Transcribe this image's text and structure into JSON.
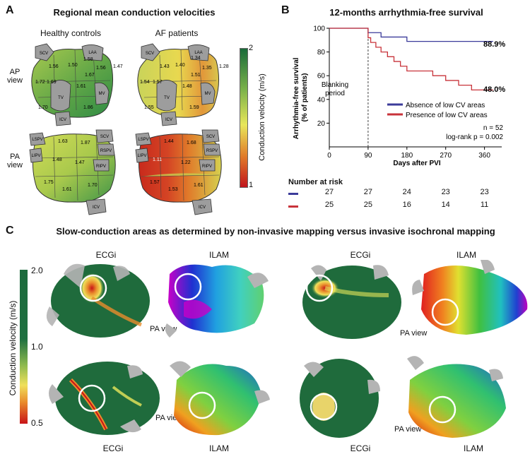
{
  "panel_a": {
    "letter": "A",
    "title": "Regional mean conduction velocities",
    "col_healthy": "Healthy controls",
    "col_af": "AF patients",
    "row_ap": "AP\nview",
    "row_pa": "PA\nview",
    "colorbar_label": "Conduction velocity (m/s)",
    "colorbar_max": "2",
    "colorbar_min": "1",
    "colorbar_colors": [
      "#1a6b3a",
      "#7db34a",
      "#e8e65a",
      "#e07a2a",
      "#c0141c"
    ],
    "ap_healthy": {
      "v1": "1.56",
      "v2": "1.50",
      "v3": "1.58",
      "v4": "1.56",
      "v5": "1.47",
      "v6": "1.72",
      "v7": "1.69",
      "v8": "1.67",
      "v9": "1.61",
      "v10": "1.70",
      "v11": "1.86"
    },
    "ap_af": {
      "v1": "1.43",
      "v2": "1.40",
      "v3": "1.34",
      "v4": "1.35",
      "v5": "1.28",
      "v6": "1.54",
      "v7": "1.57",
      "v8": "1.51",
      "v9": "1.48",
      "v10": "1.55",
      "v11": "1.59"
    },
    "pa_healthy": {
      "v1": "1.63",
      "v2": "1.87",
      "v3": "1.48",
      "v4": "1.47",
      "v5": "1.75",
      "v6": "1.61",
      "v7": "1.70"
    },
    "pa_af": {
      "v1": "1.44",
      "v2": "1.68",
      "v3": "1.11",
      "v4": "1.22",
      "v5": "1.57",
      "v6": "1.53",
      "v7": "1.61"
    },
    "struct_labels": {
      "scv": "SCV",
      "laa": "LAA",
      "tv": "TV",
      "mv": "MV",
      "icv": "ICV",
      "lspv": "LSPV",
      "lipv": "LIPV",
      "rspv": "RSPV",
      "ripv": "RIPV"
    }
  },
  "panel_b": {
    "letter": "B",
    "title": "12-months arrhythmia-free survival",
    "ylabel": "Arrhythmia-free survival\n(% of patients)",
    "xlabel": "Days after PVI",
    "blanking": "Blanking\nperiod",
    "legend_absent": "Absence of low CV areas",
    "legend_present": "Presence of low CV areas",
    "end_absent": "88.9%",
    "end_present": "48.0%",
    "n_text": "n = 52",
    "logrank": "log-rank p = 0.002",
    "risk_title": "Number at risk",
    "risk_absent": [
      "27",
      "27",
      "24",
      "23",
      "23"
    ],
    "risk_present": [
      "25",
      "25",
      "16",
      "14",
      "11"
    ],
    "color_absent": "#3b3b9a",
    "color_present": "#c8333a"
  },
  "chart_data": {
    "type": "line",
    "title": "12-months arrhythmia-free survival",
    "xlabel": "Days after PVI",
    "ylabel": "Arrhythmia-free survival (% of patients)",
    "xlim": [
      0,
      400
    ],
    "ylim": [
      0,
      100
    ],
    "xticks": [
      0,
      90,
      180,
      270,
      360
    ],
    "yticks": [
      20,
      40,
      60,
      80,
      100
    ],
    "series": [
      {
        "name": "Absence of low CV areas",
        "x": [
          0,
          90,
          90,
          120,
          120,
          180,
          180,
          255,
          255,
          380
        ],
        "y": [
          100,
          100,
          96.3,
          96.3,
          92.6,
          92.6,
          88.9,
          88.9,
          88.9,
          88.9
        ]
      },
      {
        "name": "Presence of low CV areas",
        "x": [
          0,
          90,
          90,
          96,
          96,
          108,
          108,
          120,
          120,
          135,
          135,
          150,
          150,
          165,
          165,
          180,
          180,
          240,
          240,
          270,
          270,
          300,
          300,
          330,
          330,
          380
        ],
        "y": [
          100,
          100,
          92,
          92,
          88,
          88,
          84,
          84,
          80,
          80,
          76,
          76,
          72,
          72,
          68,
          68,
          64,
          64,
          60,
          60,
          56,
          56,
          52,
          52,
          48,
          48
        ]
      }
    ]
  },
  "panel_c": {
    "letter": "C",
    "title": "Slow-conduction areas as determined by non-invasive mapping versus invasive isochronal mapping",
    "colorbar_label": "Conduction velocity (m/s)",
    "tick_max": "2.0",
    "tick_mid": "1.0",
    "tick_min": "0.5",
    "ecgi": "ECGi",
    "ilam": "ILAM",
    "pa_view": "PA view"
  }
}
